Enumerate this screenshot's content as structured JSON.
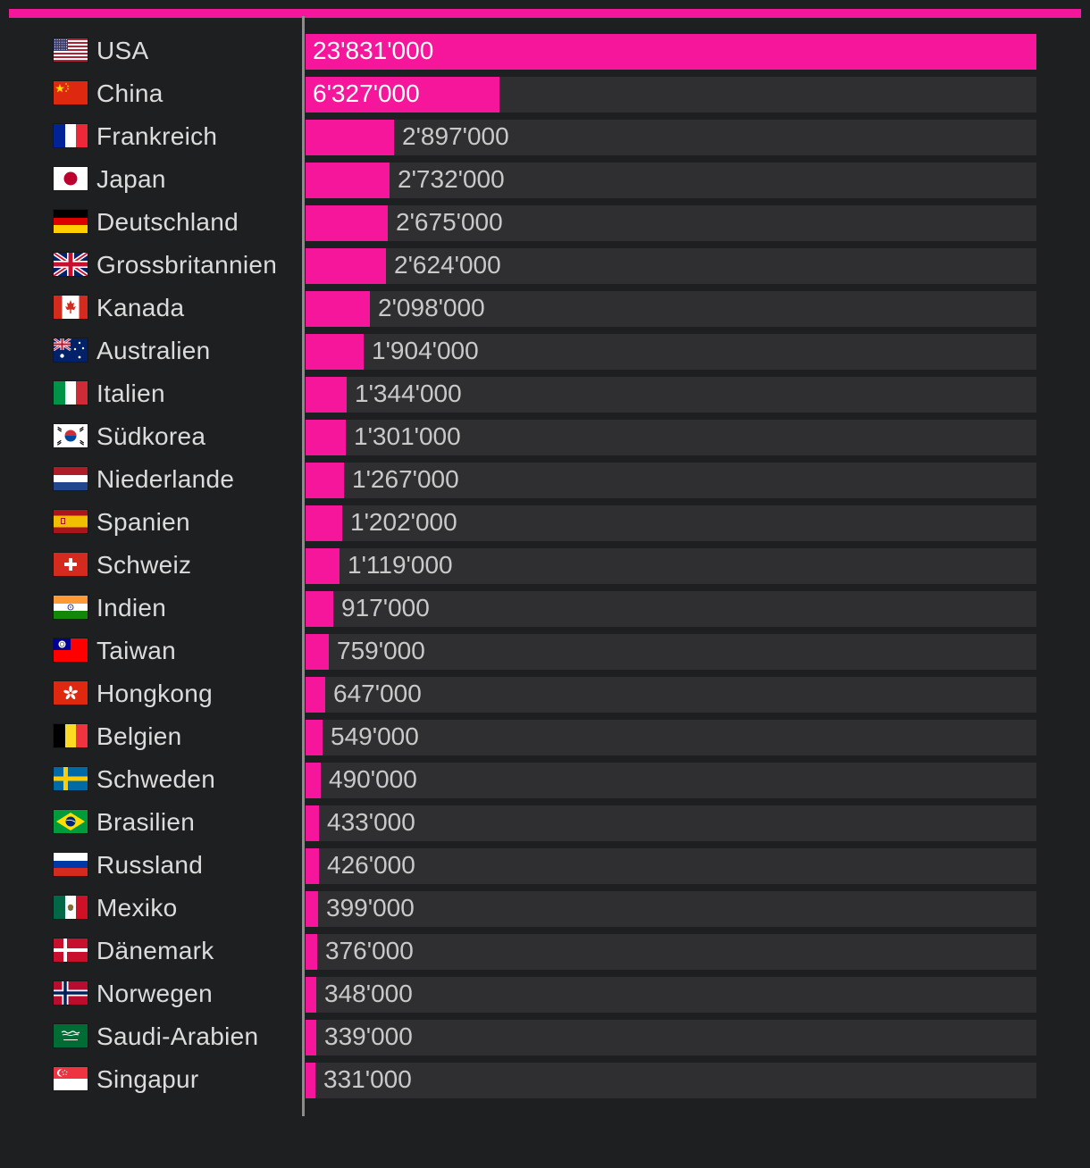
{
  "chart_data": {
    "type": "bar",
    "orientation": "horizontal",
    "categories": [
      "USA",
      "China",
      "Frankreich",
      "Japan",
      "Deutschland",
      "Grossbritannien",
      "Kanada",
      "Australien",
      "Italien",
      "Südkorea",
      "Niederlande",
      "Spanien",
      "Schweiz",
      "Indien",
      "Taiwan",
      "Hongkong",
      "Belgien",
      "Schweden",
      "Brasilien",
      "Russland",
      "Mexiko",
      "Dänemark",
      "Norwegen",
      "Saudi-Arabien",
      "Singapur"
    ],
    "values": [
      23831000,
      6327000,
      2897000,
      2732000,
      2675000,
      2624000,
      2098000,
      1904000,
      1344000,
      1301000,
      1267000,
      1202000,
      1119000,
      917000,
      759000,
      647000,
      549000,
      490000,
      433000,
      426000,
      399000,
      376000,
      348000,
      339000,
      331000
    ],
    "value_labels": [
      "23'831'000",
      "6'327'000",
      "2'897'000",
      "2'732'000",
      "2'675'000",
      "2'624'000",
      "2'098'000",
      "1'904'000",
      "1'344'000",
      "1'301'000",
      "1'267'000",
      "1'202'000",
      "1'119'000",
      "917'000",
      "759'000",
      "647'000",
      "549'000",
      "490'000",
      "433'000",
      "426'000",
      "399'000",
      "376'000",
      "348'000",
      "339'000",
      "331'000"
    ],
    "flags": [
      "us-flag-icon",
      "cn-flag-icon",
      "fr-flag-icon",
      "jp-flag-icon",
      "de-flag-icon",
      "gb-flag-icon",
      "ca-flag-icon",
      "au-flag-icon",
      "it-flag-icon",
      "kr-flag-icon",
      "nl-flag-icon",
      "es-flag-icon",
      "ch-flag-icon",
      "in-flag-icon",
      "tw-flag-icon",
      "hk-flag-icon",
      "be-flag-icon",
      "se-flag-icon",
      "br-flag-icon",
      "ru-flag-icon",
      "mx-flag-icon",
      "dk-flag-icon",
      "no-flag-icon",
      "sa-flag-icon",
      "sg-flag-icon"
    ],
    "title": "",
    "xlabel": "",
    "ylabel": "",
    "xlim": [
      0,
      23831000
    ],
    "grid": false,
    "legend": "none"
  },
  "colors": {
    "accent": "#f5169c",
    "background": "#1e1f21",
    "track": "#2f2f31",
    "label": "#dcdcdc",
    "value": "#c9c9c9",
    "value_inside": "#ffffff"
  }
}
